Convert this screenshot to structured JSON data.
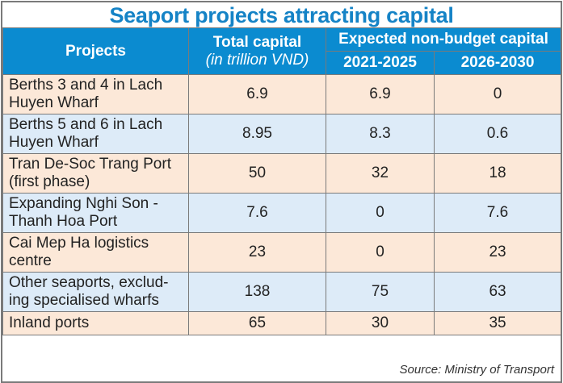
{
  "chart_data": {
    "type": "table",
    "title": "Seaport projects attracting capital",
    "columns": {
      "projects": "Projects",
      "total": "Total capital",
      "total_unit": "(in trillion VND)",
      "group": "Expected non-budget capital",
      "p1": "2021-2025",
      "p2": "2026-2030"
    },
    "rows": [
      {
        "name": "Berths 3 and 4 in Lach Huyen Wharf",
        "total": "6.9",
        "p1": "6.9",
        "p2": "0"
      },
      {
        "name": "Berths 5 and 6 in Lach Huyen Wharf",
        "total": "8.95",
        "p1": "8.3",
        "p2": "0.6"
      },
      {
        "name": "Tran De-Soc Trang Port (first phase)",
        "total": "50",
        "p1": "32",
        "p2": "18"
      },
      {
        "name": "Expanding Nghi Son - Thanh Hoa Port",
        "total": "7.6",
        "p1": "0",
        "p2": "7.6"
      },
      {
        "name": "Cai Mep Ha logistics centre",
        "total": "23",
        "p1": "0",
        "p2": "23"
      },
      {
        "name": "Other seaports, exclud-ing specialised wharfs",
        "total": "138",
        "p1": "75",
        "p2": "63"
      },
      {
        "name": "Inland ports",
        "total": "65",
        "p1": "30",
        "p2": "35"
      }
    ],
    "source": "Source: Ministry of Transport",
    "colors": {
      "title": "#1583c6",
      "header": "#0b8bd0",
      "row_odd": "#fce8d8",
      "row_even": "#ddebf8"
    }
  }
}
